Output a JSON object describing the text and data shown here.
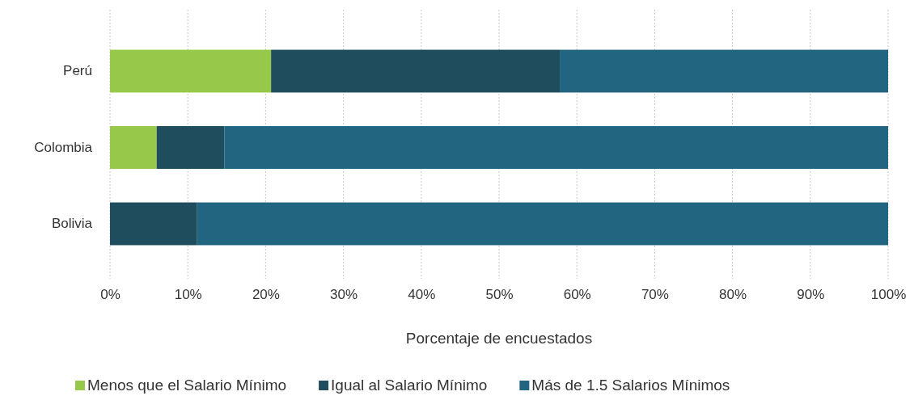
{
  "chart_data": {
    "type": "bar",
    "orientation": "horizontal",
    "stacked": true,
    "xlabel": "Porcentaje  de encuestados",
    "categories": [
      "Perú",
      "Colombia",
      "Bolivia"
    ],
    "series": [
      {
        "name": "Menos que el Salario Mínimo",
        "color": "#97c84a",
        "values": [
          20.7,
          6,
          0
        ]
      },
      {
        "name": "Igual al Salario Mínimo",
        "color": "#1f4d5e",
        "values": [
          37.1,
          8.7,
          11.2
        ]
      },
      {
        "name": "Más de 1.5 Salarios Mínimos",
        "color": "#226580",
        "values": [
          42.2,
          85.3,
          88.8
        ]
      }
    ],
    "xlim": [
      0,
      100
    ],
    "xticks": [
      {
        "value": 0,
        "label": "0%"
      },
      {
        "value": 10,
        "label": "10%"
      },
      {
        "value": 20,
        "label": "20%"
      },
      {
        "value": 30,
        "label": "30%"
      },
      {
        "value": 40,
        "label": "40%"
      },
      {
        "value": 50,
        "label": "50%"
      },
      {
        "value": 60,
        "label": "60%"
      },
      {
        "value": 70,
        "label": "70%"
      },
      {
        "value": 80,
        "label": "80%"
      },
      {
        "value": 90,
        "label": "90%"
      },
      {
        "value": 100,
        "label": "100%"
      }
    ],
    "grid": "x",
    "legend": "bottom"
  }
}
